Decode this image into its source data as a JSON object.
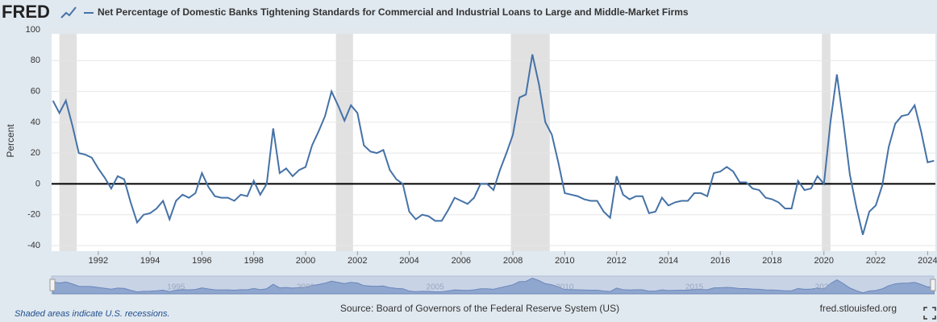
{
  "logo": "FRED",
  "footer": {
    "note": "Shaded areas indicate U.S. recessions.",
    "source": "Source: Board of Governors of the Federal Reserve System (US)",
    "site": "fred.stlouisfed.org"
  },
  "chart_data": {
    "type": "line",
    "series": [
      {
        "name": "Net Percentage of Domestic Banks Tightening Standards for Commercial and Industrial Loans to Large and Middle-Market Firms",
        "color": "#4572a7",
        "x": [
          1990.25,
          1990.5,
          1990.75,
          1991,
          1991.25,
          1991.5,
          1991.75,
          1992,
          1992.25,
          1992.5,
          1992.75,
          1993,
          1993.25,
          1993.5,
          1993.75,
          1994,
          1994.25,
          1994.5,
          1994.75,
          1995,
          1995.25,
          1995.5,
          1995.75,
          1996,
          1996.25,
          1996.5,
          1996.75,
          1997,
          1997.25,
          1997.5,
          1997.75,
          1998,
          1998.25,
          1998.5,
          1998.75,
          1999,
          1999.25,
          1999.5,
          1999.75,
          2000,
          2000.25,
          2000.5,
          2000.75,
          2001,
          2001.25,
          2001.5,
          2001.75,
          2002,
          2002.25,
          2002.5,
          2002.75,
          2003,
          2003.25,
          2003.5,
          2003.75,
          2004,
          2004.25,
          2004.5,
          2004.75,
          2005,
          2005.25,
          2005.5,
          2005.75,
          2006,
          2006.25,
          2006.5,
          2006.75,
          2007,
          2007.25,
          2007.5,
          2007.75,
          2008,
          2008.25,
          2008.5,
          2008.75,
          2009,
          2009.25,
          2009.5,
          2009.75,
          2010,
          2010.25,
          2010.5,
          2010.75,
          2011,
          2011.25,
          2011.5,
          2011.75,
          2012,
          2012.25,
          2012.5,
          2012.75,
          2013,
          2013.25,
          2013.5,
          2013.75,
          2014,
          2014.25,
          2014.5,
          2014.75,
          2015,
          2015.25,
          2015.5,
          2015.75,
          2016,
          2016.25,
          2016.5,
          2016.75,
          2017,
          2017.25,
          2017.5,
          2017.75,
          2018,
          2018.25,
          2018.5,
          2018.75,
          2019,
          2019.25,
          2019.5,
          2019.75,
          2020,
          2020.25,
          2020.5,
          2020.75,
          2021,
          2021.25,
          2021.5,
          2021.75,
          2022,
          2022.25,
          2022.5,
          2022.75,
          2023,
          2023.25,
          2023.5,
          2023.75,
          2024,
          2024.25
        ],
        "values": [
          54,
          46,
          54,
          38,
          20,
          19,
          17,
          10,
          4,
          -3,
          5,
          3,
          -12,
          -25,
          -20,
          -19,
          -16,
          -11,
          -23,
          -11,
          -7,
          -9,
          -6,
          7,
          -2,
          -8,
          -9,
          -9,
          -11,
          -7,
          -8,
          2,
          -7,
          0,
          36,
          7,
          10,
          5,
          9,
          11,
          25,
          34,
          44,
          60,
          51,
          41,
          51,
          46,
          25,
          21,
          20,
          22,
          9,
          3,
          0,
          -18,
          -23,
          -20,
          -21,
          -24,
          -24,
          -17,
          -9,
          -11,
          -13,
          -9,
          0,
          0,
          -4,
          9,
          20,
          32,
          56,
          58,
          84,
          65,
          40,
          32,
          14,
          -6,
          -7,
          -8,
          -10,
          -11,
          -11,
          -18,
          -22,
          5,
          -7,
          -10,
          -8,
          -8,
          -19,
          -18,
          -9,
          -14,
          -12,
          -11,
          -11,
          -6,
          -6,
          -8,
          7,
          8,
          11,
          8,
          1,
          1,
          -3,
          -4,
          -9,
          -10,
          -12,
          -16,
          -16,
          2,
          -4,
          -3,
          5,
          0,
          40,
          71,
          40,
          6,
          -15,
          -33,
          -18,
          -14,
          -1,
          24,
          39,
          44,
          45,
          51,
          34,
          14,
          15
        ]
      }
    ],
    "recessions": [
      [
        1990.5,
        1991.17
      ],
      [
        2001.17,
        2001.83
      ],
      [
        2007.92,
        2009.42
      ],
      [
        2019.92,
        2020.25
      ]
    ],
    "ylabel": "Percent",
    "xlim": [
      1990.2,
      2024.3
    ],
    "xticks": [
      1992,
      1994,
      1996,
      1998,
      2000,
      2002,
      2004,
      2006,
      2008,
      2010,
      2012,
      2014,
      2016,
      2018,
      2020,
      2022,
      2024
    ],
    "ylim": [
      -40,
      100
    ],
    "yticks": [
      -40,
      -20,
      0,
      20,
      40,
      60,
      80,
      100
    ],
    "navigator_ticks": [
      1995,
      2000,
      2005,
      2010,
      2015,
      2020
    ],
    "grid": true
  }
}
